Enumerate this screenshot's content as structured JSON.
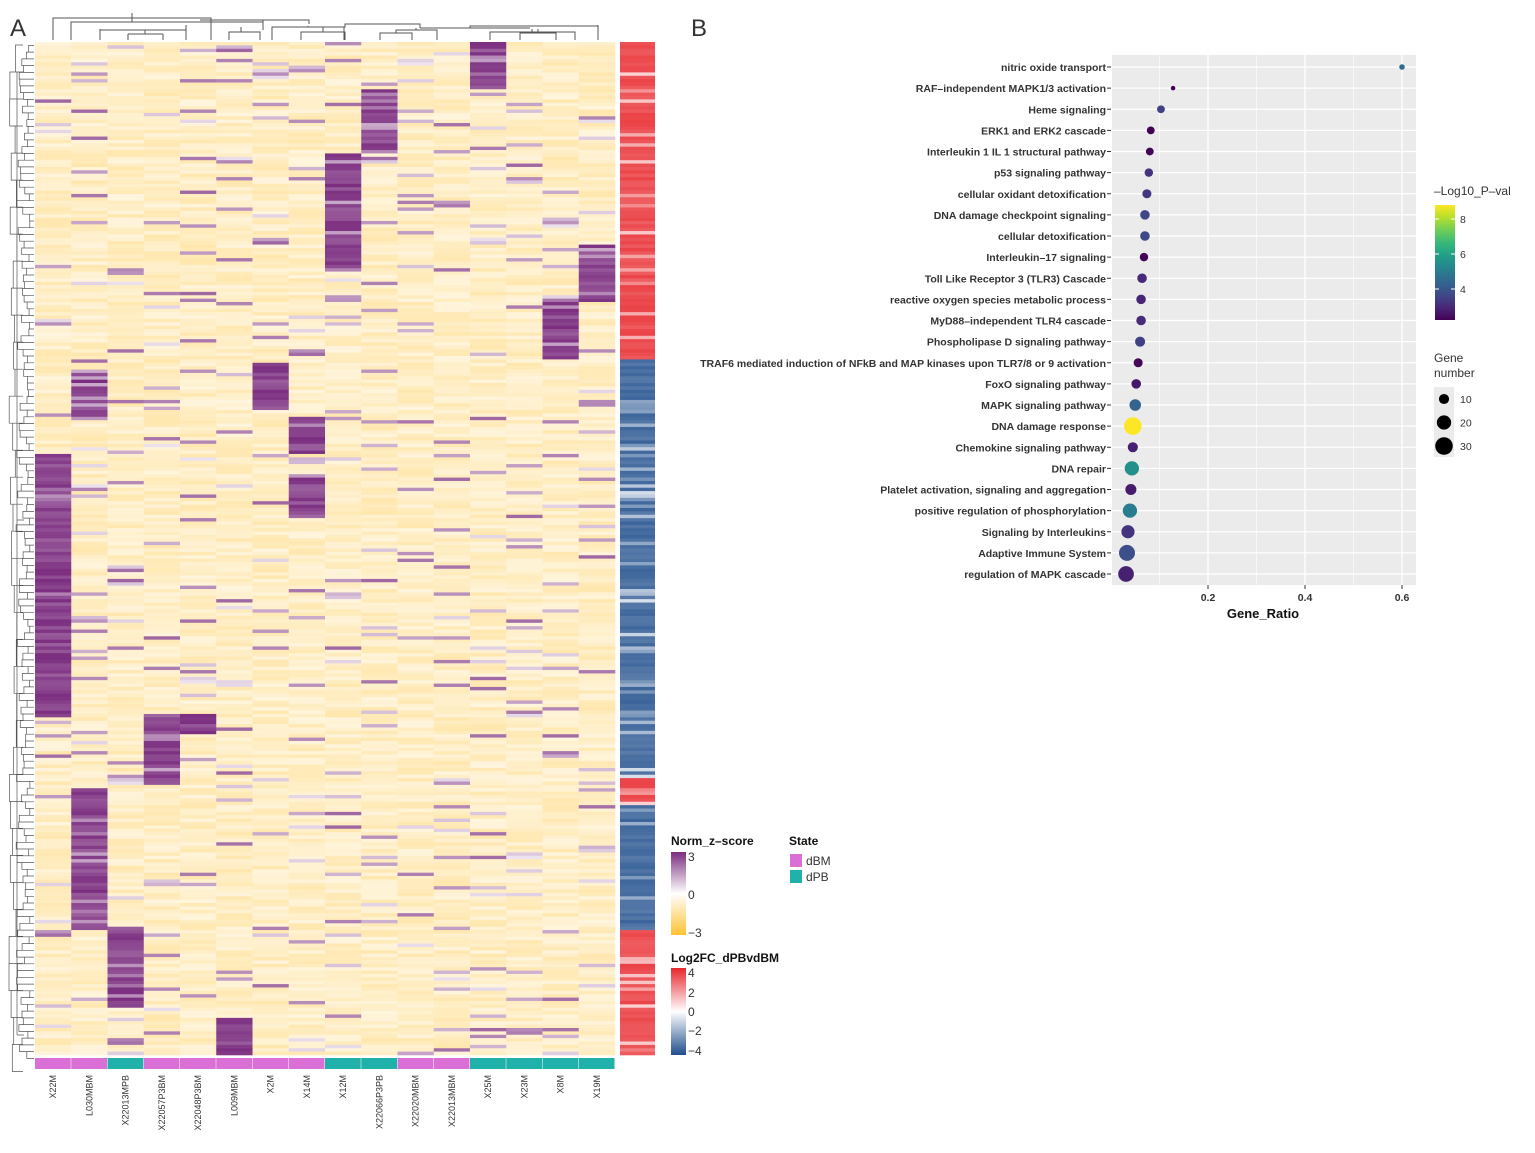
{
  "panel_labels": {
    "a": "A",
    "b": "B"
  },
  "chart_data": [
    {
      "type": "heatmap",
      "title": "",
      "columns": [
        "X22M",
        "L030MBM",
        "X22013MPB",
        "X22057P3BM",
        "X22048P3BM",
        "L009MBM",
        "X2M",
        "X14M",
        "X12M",
        "X22066P3PB",
        "X22020MBM",
        "X22013MBM",
        "X25M",
        "X23M",
        "X8M",
        "X19M"
      ],
      "column_state": [
        "dBM",
        "dBM",
        "dPB",
        "dBM",
        "dBM",
        "dBM",
        "dBM",
        "dBM",
        "dPB",
        "dPB",
        "dBM",
        "dBM",
        "dPB",
        "dPB",
        "dPB",
        "dPB"
      ],
      "n_rows": 300,
      "high_zscore_blocks": [
        {
          "column": "X25M",
          "rows": [
            0,
            14
          ]
        },
        {
          "column": "X22066P3PB",
          "rows": [
            14,
            33
          ]
        },
        {
          "column": "X12M",
          "rows": [
            33,
            67
          ]
        },
        {
          "column": "X19M",
          "rows": [
            60,
            77
          ]
        },
        {
          "column": "X8M",
          "rows": [
            77,
            94
          ]
        },
        {
          "column": "X2M",
          "rows": [
            95,
            109
          ]
        },
        {
          "column": "L030MBM",
          "rows": [
            97,
            111
          ]
        },
        {
          "column": "X14M",
          "rows": [
            111,
            122
          ]
        },
        {
          "column": "X14M",
          "rows": [
            129,
            141
          ]
        },
        {
          "column": "X22M",
          "rows": [
            122,
            200
          ]
        },
        {
          "column": "X22057P3BM",
          "rows": [
            199,
            220
          ]
        },
        {
          "column": "X22048P3BM",
          "rows": [
            199,
            205
          ]
        },
        {
          "column": "L030MBM",
          "rows": [
            221,
            263
          ]
        },
        {
          "column": "X22013MPB",
          "rows": [
            262,
            286
          ]
        },
        {
          "column": "L009MBM",
          "rows": [
            289,
            300
          ]
        }
      ],
      "log2fc_segments": [
        {
          "rows": [
            0,
            94
          ],
          "direction": "up",
          "value": 3.5
        },
        {
          "rows": [
            94,
            218
          ],
          "direction": "down",
          "value": -3.5
        },
        {
          "rows": [
            218,
            226
          ],
          "direction": "up",
          "value": 3.5
        },
        {
          "rows": [
            226,
            263
          ],
          "direction": "down",
          "value": -3.5
        },
        {
          "rows": [
            263,
            300
          ],
          "direction": "up",
          "value": 3.5
        }
      ],
      "legend_zscore": {
        "title": "Norm_z–score",
        "ticks": [
          "3",
          "0",
          "−3"
        ],
        "range": [
          -3,
          3
        ],
        "colors": {
          "low": "#FFC233",
          "mid": "#FFFFFF",
          "high": "#7B2D7F"
        }
      },
      "legend_state": {
        "title": "State",
        "items": [
          {
            "label": "dBM",
            "color": "#DA70D6"
          },
          {
            "label": "dPB",
            "color": "#20B2AA"
          }
        ]
      },
      "legend_log2fc": {
        "title": "Log2FC_dPBvdBM",
        "ticks": [
          "4",
          "2",
          "0",
          "−2",
          "−4"
        ],
        "range": [
          -4,
          4
        ],
        "colors": {
          "low": "#1F4E8C",
          "mid": "#FFFFFF",
          "high": "#E8262B"
        }
      }
    },
    {
      "type": "scatter",
      "title": "",
      "xlabel": "Gene_Ratio",
      "ylabel": "",
      "xlim": [
        0,
        0.63
      ],
      "xticks": [
        "0.2",
        "0.4",
        "0.6"
      ],
      "xtick_values": [
        0.2,
        0.4,
        0.6
      ],
      "grid": true,
      "legend_placement": "right",
      "terms": [
        {
          "label": "nitric oxide transport",
          "gene_ratio": 0.6,
          "neg_log10_p": 4.5,
          "gene_number": 3
        },
        {
          "label": "RAF–independent MAPK1/3 activation",
          "gene_ratio": 0.128,
          "neg_log10_p": 2.2,
          "gene_number": 2
        },
        {
          "label": "Heme signaling",
          "gene_ratio": 0.103,
          "neg_log10_p": 3.5,
          "gene_number": 6
        },
        {
          "label": "ERK1 and ERK2 cascade",
          "gene_ratio": 0.082,
          "neg_log10_p": 2.2,
          "gene_number": 6
        },
        {
          "label": "Interleukin 1 IL 1 structural pathway",
          "gene_ratio": 0.08,
          "neg_log10_p": 2.3,
          "gene_number": 6
        },
        {
          "label": "p53 signaling pathway",
          "gene_ratio": 0.078,
          "neg_log10_p": 3.2,
          "gene_number": 7
        },
        {
          "label": "cellular oxidant detoxification",
          "gene_ratio": 0.074,
          "neg_log10_p": 3.3,
          "gene_number": 8
        },
        {
          "label": "DNA damage checkpoint signaling",
          "gene_ratio": 0.07,
          "neg_log10_p": 3.6,
          "gene_number": 9
        },
        {
          "label": "cellular detoxification",
          "gene_ratio": 0.07,
          "neg_log10_p": 3.6,
          "gene_number": 9
        },
        {
          "label": "Interleukin–17 signaling",
          "gene_ratio": 0.068,
          "neg_log10_p": 2.3,
          "gene_number": 7
        },
        {
          "label": "Toll Like Receptor 3 (TLR3) Cascade",
          "gene_ratio": 0.064,
          "neg_log10_p": 3.0,
          "gene_number": 9
        },
        {
          "label": "reactive oxygen species metabolic process",
          "gene_ratio": 0.062,
          "neg_log10_p": 2.9,
          "gene_number": 9
        },
        {
          "label": "MyD88–independent TLR4 cascade",
          "gene_ratio": 0.062,
          "neg_log10_p": 3.0,
          "gene_number": 9
        },
        {
          "label": "Phospholipase D signaling pathway",
          "gene_ratio": 0.06,
          "neg_log10_p": 3.5,
          "gene_number": 10
        },
        {
          "label": "TRAF6 mediated induction of NFkB and MAP kinases upon TLR7/8 or 9 activation",
          "gene_ratio": 0.056,
          "neg_log10_p": 2.3,
          "gene_number": 8
        },
        {
          "label": "FoxO signaling pathway",
          "gene_ratio": 0.052,
          "neg_log10_p": 2.6,
          "gene_number": 9
        },
        {
          "label": "MAPK signaling pathway",
          "gene_ratio": 0.05,
          "neg_log10_p": 4.3,
          "gene_number": 13
        },
        {
          "label": "DNA damage response",
          "gene_ratio": 0.045,
          "neg_log10_p": 8.8,
          "gene_number": 30
        },
        {
          "label": "Chemokine signaling pathway",
          "gene_ratio": 0.045,
          "neg_log10_p": 2.8,
          "gene_number": 10
        },
        {
          "label": "DNA repair",
          "gene_ratio": 0.043,
          "neg_log10_p": 5.5,
          "gene_number": 20
        },
        {
          "label": "Platelet activation, signaling and aggregation",
          "gene_ratio": 0.041,
          "neg_log10_p": 2.7,
          "gene_number": 12
        },
        {
          "label": "positive regulation of phosphorylation",
          "gene_ratio": 0.039,
          "neg_log10_p": 5.0,
          "gene_number": 20
        },
        {
          "label": "Signaling by Interleukins",
          "gene_ratio": 0.035,
          "neg_log10_p": 3.2,
          "gene_number": 17
        },
        {
          "label": "Adaptive Immune System",
          "gene_ratio": 0.033,
          "neg_log10_p": 3.8,
          "gene_number": 25
        },
        {
          "label": "regulation of MAPK cascade",
          "gene_ratio": 0.031,
          "neg_log10_p": 2.8,
          "gene_number": 24
        }
      ],
      "color_legend": {
        "title": "–Log10_P–val",
        "ticks": [
          "8",
          "6",
          "4"
        ],
        "tick_values": [
          8,
          6,
          4
        ],
        "range": [
          2.2,
          8.8
        ]
      },
      "size_legend": {
        "title_line1": "Gene",
        "title_line2": "number",
        "ticks": [
          "10",
          "20",
          "30"
        ],
        "tick_values": [
          10,
          20,
          30
        ]
      }
    }
  ]
}
